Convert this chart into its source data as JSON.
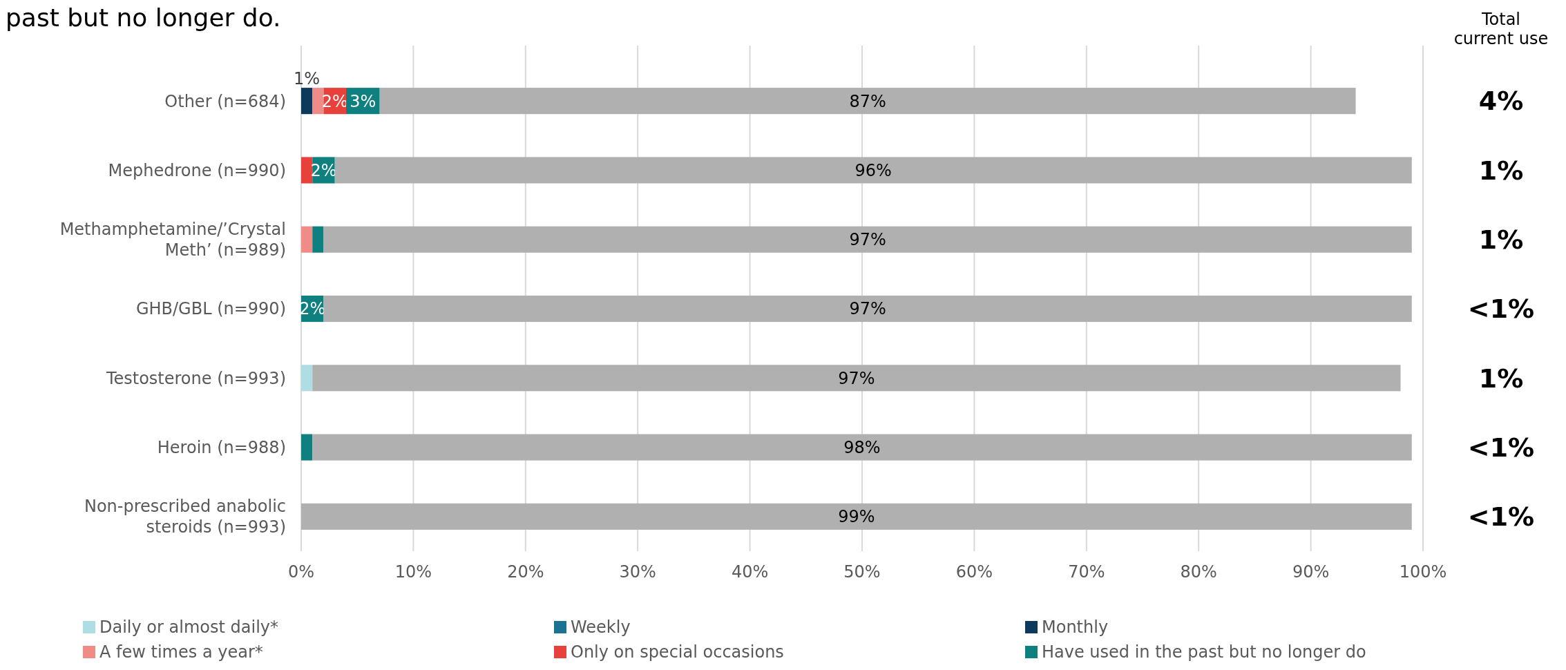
{
  "chart_data": {
    "type": "bar",
    "orientation": "horizontal",
    "stacked": true,
    "title": "past but no longer do.",
    "categories": [
      "Other (n=684)",
      "Mephedrone (n=990)",
      "Methamphetamine/’Crystal Meth’ (n=989)",
      "GHB/GBL (n=990)",
      "Testosterone (n=993)",
      "Heroin (n=988)",
      "Non-prescribed anabolic steroids (n=993)"
    ],
    "series": [
      {
        "name": "Daily or almost daily*",
        "color": "#aedde3",
        "values": [
          0,
          0,
          0,
          0,
          1,
          0,
          0
        ],
        "value_labels": [
          null,
          null,
          null,
          null,
          null,
          null,
          null
        ]
      },
      {
        "name": "Weekly",
        "color": "#1a7391",
        "values": [
          0,
          0,
          0,
          0,
          0,
          0,
          0
        ],
        "value_labels": [
          null,
          null,
          null,
          null,
          null,
          null,
          null
        ]
      },
      {
        "name": "Monthly",
        "color": "#0d3a5c",
        "values": [
          1,
          0,
          0,
          0,
          0,
          0,
          0
        ],
        "value_labels": [
          "1%",
          null,
          null,
          null,
          null,
          null,
          null
        ]
      },
      {
        "name": "A few times a year*",
        "color": "#f08c88",
        "values": [
          1,
          0,
          1,
          0,
          0,
          0,
          0
        ],
        "value_labels": [
          null,
          null,
          null,
          null,
          null,
          null,
          null
        ]
      },
      {
        "name": "Only on special occasions",
        "color": "#e8413c",
        "values": [
          2,
          1,
          0,
          0,
          0,
          0,
          0
        ],
        "value_labels": [
          "2%",
          null,
          null,
          null,
          null,
          null,
          null
        ]
      },
      {
        "name": "Have used in the past but no longer do",
        "color": "#0e8080",
        "values": [
          3,
          2,
          1,
          2,
          0,
          1,
          0
        ],
        "value_labels": [
          "3%",
          "2%",
          null,
          "2%",
          null,
          null,
          null
        ]
      },
      {
        "color": "#b0b0b0",
        "values": [
          87,
          96,
          97,
          97,
          97,
          98,
          99
        ],
        "value_labels": [
          "87%",
          "96%",
          "97%",
          "97%",
          "97%",
          "98%",
          "99%"
        ]
      }
    ],
    "xlim": [
      0,
      100
    ],
    "xticks": [
      {
        "value": 0,
        "label": "0%"
      },
      {
        "value": 10,
        "label": "10%"
      },
      {
        "value": 20,
        "label": "20%"
      },
      {
        "value": 30,
        "label": "30%"
      },
      {
        "value": 40,
        "label": "40%"
      },
      {
        "value": 50,
        "label": "50%"
      },
      {
        "value": 60,
        "label": "60%"
      },
      {
        "value": 70,
        "label": "70%"
      },
      {
        "value": 80,
        "label": "80%"
      },
      {
        "value": 90,
        "label": "90%"
      },
      {
        "value": 100,
        "label": "100%"
      }
    ],
    "grid": "x",
    "legend": "bottom",
    "annotations": [
      "Total current use",
      "4%",
      "1%",
      "1%",
      "<1%",
      "1%",
      "<1%",
      "<1%"
    ]
  }
}
